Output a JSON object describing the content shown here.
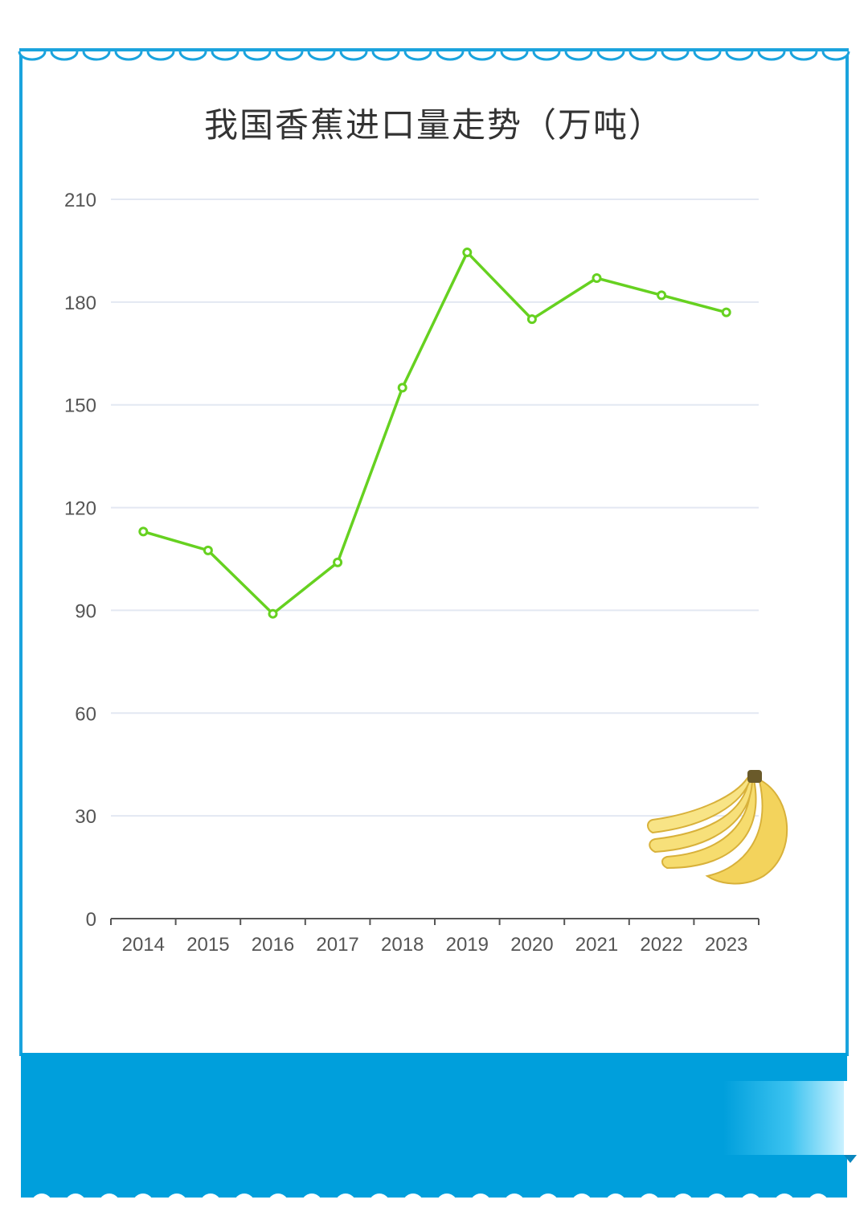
{
  "colors": {
    "frame": "#1aa3dd",
    "band": "#009fdc",
    "line": "#66d120",
    "grid": "#e3e8f2",
    "axis": "#555555"
  },
  "chart_data": {
    "type": "line",
    "title": "我国香蕉进口量走势（万吨）",
    "xlabel": "",
    "ylabel": "",
    "categories": [
      "2014",
      "2015",
      "2016",
      "2017",
      "2018",
      "2019",
      "2020",
      "2021",
      "2022",
      "2023"
    ],
    "series": [
      {
        "values": [
          113,
          107.5,
          89,
          104,
          155,
          194.5,
          175,
          187,
          182,
          177
        ]
      }
    ],
    "ylim": [
      0,
      210
    ],
    "yticks": [
      0,
      30,
      60,
      90,
      120,
      150,
      180,
      210
    ],
    "grid": true,
    "legend": "none",
    "decoration": "banana-bunch-icon"
  }
}
